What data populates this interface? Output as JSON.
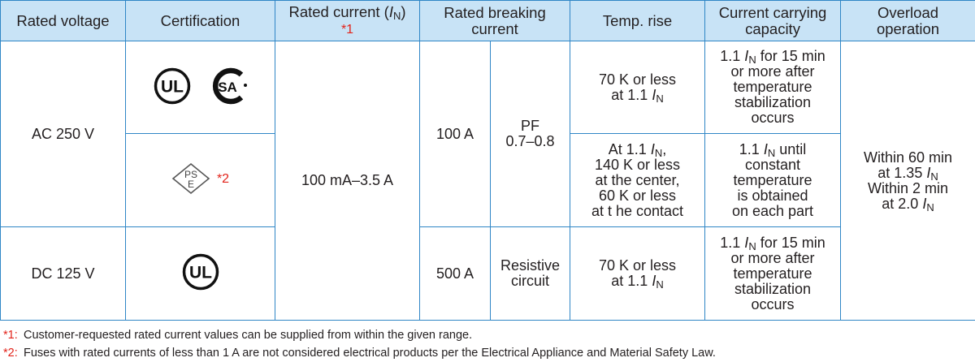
{
  "headers": {
    "rated_voltage": "Rated voltage",
    "certification": "Certification",
    "rated_current": "Rated current (",
    "rated_current_sym": "I",
    "rated_current_sub": "N",
    "rated_current_close": ")",
    "rated_current_note": "*1",
    "rated_breaking_current": "Rated breaking current",
    "temp_rise": "Temp. rise",
    "current_carrying_capacity": "Current carrying capacity",
    "overload_operation": "Overload operation"
  },
  "rows": {
    "ac_voltage": "AC 250 V",
    "dc_voltage": "DC 125 V",
    "rated_current_range": "100 mA–3.5 A",
    "breaking_100a": "100 A",
    "pf_label": "PF",
    "pf_value": "0.7–0.8",
    "breaking_500a": "500 A",
    "resistive_1": "Resistive",
    "resistive_2": "circuit",
    "pse_note": "*2"
  },
  "temp_rise": {
    "row1_l1": "70 K or less",
    "row1_l2": "at 1.1 ",
    "row2_l1": "At 1.1 ",
    "row2_l2": "140 K or less",
    "row2_l3": "at the center,",
    "row2_l4": "60 K or less",
    "row2_l5": "at t he contact",
    "row3_l1": "70 K or less",
    "row3_l2": "at 1.1 "
  },
  "capacity": {
    "row1_l1a": "1.1 ",
    "row1_l1b": " for 15 min",
    "row1_l2": "or more after",
    "row1_l3": "temperature",
    "row1_l4": "stabilization",
    "row1_l5": "occurs",
    "row2_l1a": "1.1 ",
    "row2_l1b": " until",
    "row2_l2": "constant",
    "row2_l3": "temperature",
    "row2_l4": "is obtained",
    "row2_l5": "on each part",
    "row3_l1a": "1.1 ",
    "row3_l1b": " for 15 min",
    "row3_l2": "or more after",
    "row3_l3": "temperature",
    "row3_l4": "stabilization",
    "row3_l5": "occurs"
  },
  "overload": {
    "l1": "Within 60 min",
    "l2": "at 1.35 ",
    "l3": "Within 2 min",
    "l4": "at 2.0 "
  },
  "symbol": {
    "I": "I",
    "N": "N",
    "comma": ","
  },
  "logos": {
    "ul_text": "UL",
    "csa_text": "SA",
    "pse_top": "PS",
    "pse_bottom": "E",
    "ul_icon": "ul-listed-mark",
    "csa_icon": "csa-mark",
    "pse_icon": "pse-diamond-mark"
  },
  "notes": [
    {
      "marker": "*1:",
      "text": "Customer-requested rated current values can be supplied from within the given range."
    },
    {
      "marker": "*2:",
      "text": "Fuses with rated currents of less than 1 A are not considered electrical products per the Electrical Appliance and Material Safety Law."
    }
  ],
  "colors": {
    "border": "#2f86c6",
    "header_bg": "#c8e3f6",
    "note_red": "#e2231a",
    "text": "#231f20"
  }
}
